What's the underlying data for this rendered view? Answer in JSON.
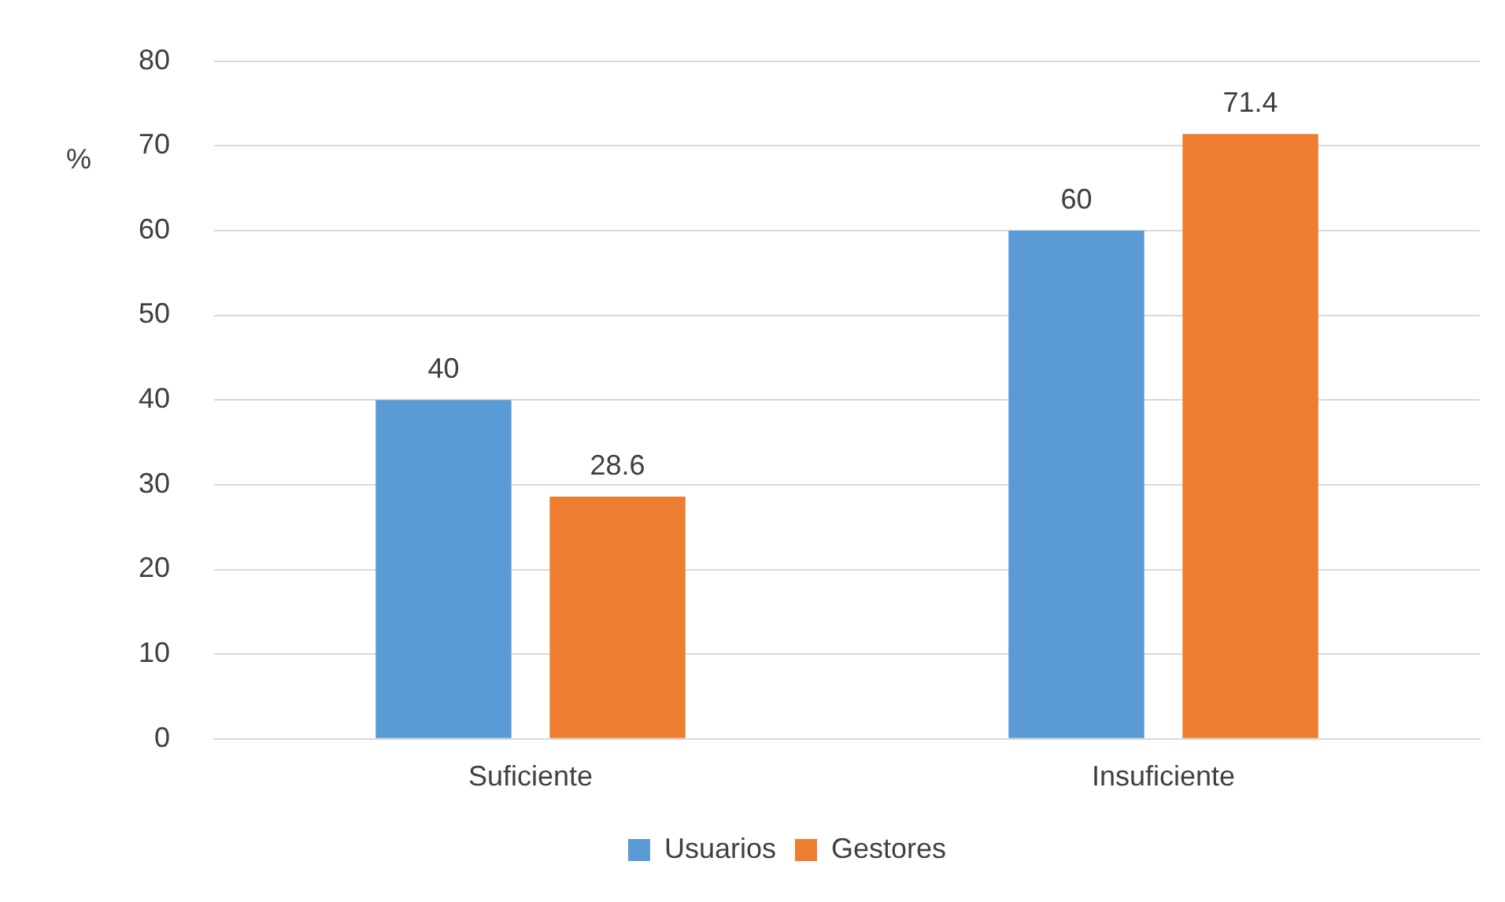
{
  "chart_data": {
    "type": "bar",
    "ylabel": "%",
    "categories": [
      "Suficiente",
      "Insuficiente"
    ],
    "series": [
      {
        "name": "Usuarios",
        "color": "#5b9bd5",
        "values": [
          40,
          60
        ]
      },
      {
        "name": "Gestores",
        "color": "#ed7d31",
        "values": [
          28.6,
          71.4
        ]
      }
    ],
    "ylim": [
      0,
      80
    ],
    "yticks": [
      0,
      10,
      20,
      30,
      40,
      50,
      60,
      70,
      80
    ],
    "grid": "y",
    "legend": "bottom",
    "data_labels": true
  }
}
